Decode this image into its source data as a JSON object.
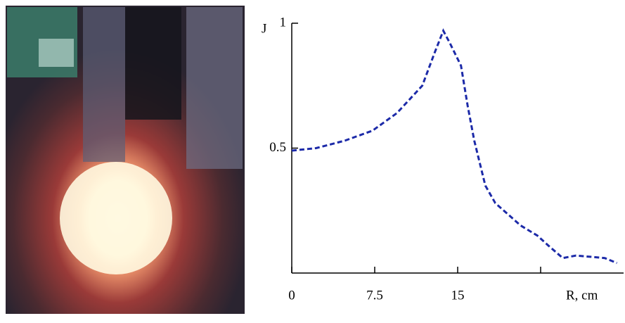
{
  "chart_data": {
    "type": "line",
    "x_label": "R, cm",
    "y_label": "J",
    "x": [
      0,
      2.2,
      4.8,
      7.3,
      9.5,
      11.8,
      12.9,
      13.7,
      14.3,
      15.3,
      15.9,
      16.5,
      17.5,
      18.4,
      20.7,
      22.2,
      23.2,
      24.5,
      25.7,
      28.3,
      29.4
    ],
    "series": [
      {
        "color": "#1c2aa8",
        "values": [
          0.49,
          0.5,
          0.53,
          0.57,
          0.64,
          0.75,
          0.88,
          0.97,
          0.92,
          0.83,
          0.67,
          0.53,
          0.35,
          0.28,
          0.19,
          0.15,
          0.11,
          0.06,
          0.07,
          0.06,
          0.04
        ]
      }
    ],
    "xlim": [
      0,
      30
    ],
    "ylim": [
      0,
      1
    ],
    "xticks": [
      0,
      7.5,
      15
    ],
    "minor_xticks": [
      22.5
    ],
    "yticks": [
      0.5,
      1
    ],
    "line_style": "dashed"
  }
}
